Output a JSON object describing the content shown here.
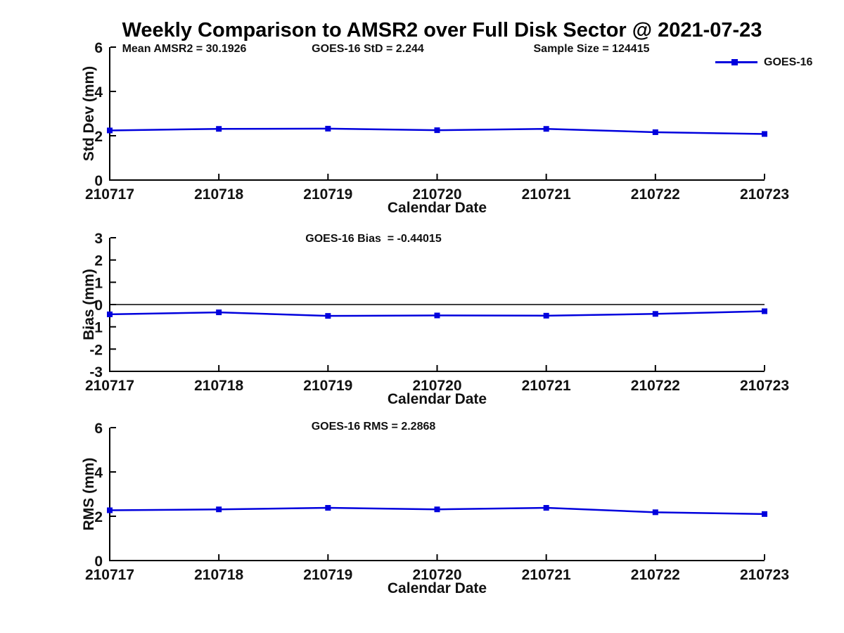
{
  "figure": {
    "title": "Weekly Comparison to AMSR2 over Full Disk Sector @ 2021-07-23",
    "legend": {
      "label": "GOES-16"
    },
    "colors": {
      "series": "#0000dd",
      "axis": "#000000",
      "text": "#111111",
      "background": "#ffffff"
    }
  },
  "chart_data": [
    {
      "type": "line",
      "name": "std-dev",
      "annotations": [
        "Mean AMSR2 = 30.1926",
        "GOES-16 StD = 2.244",
        "Sample Size = 124415"
      ],
      "categories": [
        "210717",
        "210718",
        "210719",
        "210720",
        "210721",
        "210722",
        "210723"
      ],
      "xlabel": "Calendar Date",
      "ylabel": "Std Dev (mm)",
      "ylim": [
        0,
        6
      ],
      "yticks": [
        0,
        2,
        4,
        6
      ],
      "grid": false,
      "zero_line": false,
      "legend_position": "top-right",
      "series": [
        {
          "name": "GOES-16",
          "marker": "square",
          "values": [
            2.24,
            2.31,
            2.32,
            2.25,
            2.31,
            2.16,
            2.08
          ]
        }
      ]
    },
    {
      "type": "line",
      "name": "bias",
      "annotations": [
        "GOES-16 Bias  = -0.44015"
      ],
      "categories": [
        "210717",
        "210718",
        "210719",
        "210720",
        "210721",
        "210722",
        "210723"
      ],
      "xlabel": "Calendar Date",
      "ylabel": "Bias (mm)",
      "ylim": [
        -3,
        3
      ],
      "yticks": [
        3,
        2,
        1,
        0,
        -1,
        -2,
        -3
      ],
      "grid": false,
      "zero_line": true,
      "series": [
        {
          "name": "GOES-16",
          "marker": "square",
          "values": [
            -0.44,
            -0.35,
            -0.51,
            -0.49,
            -0.5,
            -0.42,
            -0.3
          ]
        }
      ]
    },
    {
      "type": "line",
      "name": "rms",
      "annotations": [
        "GOES-16 RMS = 2.2868"
      ],
      "categories": [
        "210717",
        "210718",
        "210719",
        "210720",
        "210721",
        "210722",
        "210723"
      ],
      "xlabel": "Calendar Date",
      "ylabel": "RMS (mm)",
      "ylim": [
        0,
        6
      ],
      "yticks": [
        0,
        2,
        4,
        6
      ],
      "grid": false,
      "zero_line": false,
      "series": [
        {
          "name": "GOES-16",
          "marker": "square",
          "values": [
            2.27,
            2.31,
            2.38,
            2.31,
            2.38,
            2.18,
            2.1
          ]
        }
      ]
    }
  ]
}
